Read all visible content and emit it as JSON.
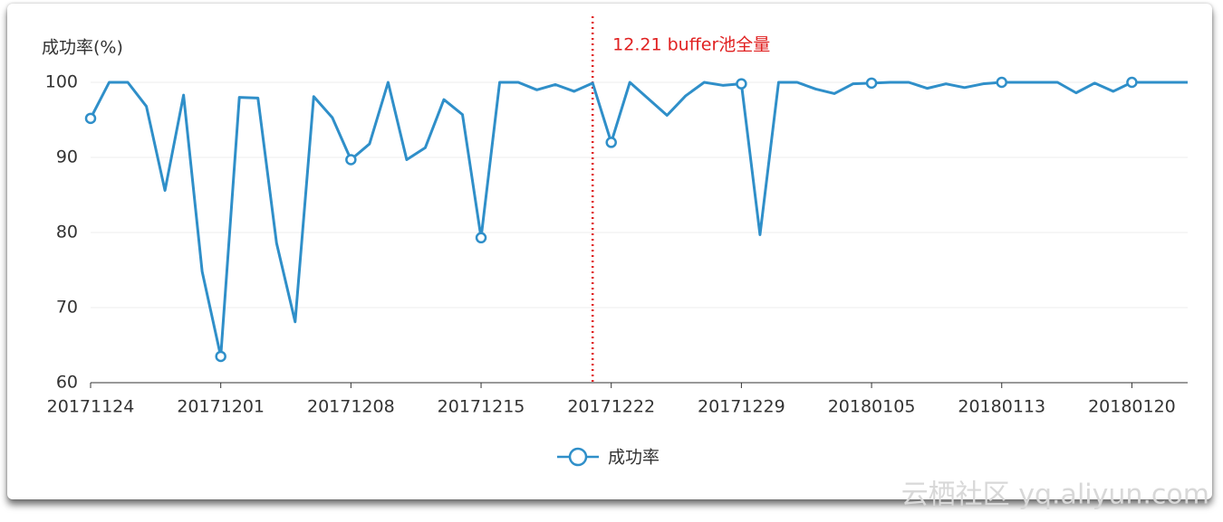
{
  "chart_data": {
    "type": "line",
    "y_label": "成功率(%)",
    "categories": [
      "20171124",
      null,
      null,
      null,
      null,
      null,
      null,
      "20171201",
      null,
      null,
      null,
      null,
      null,
      null,
      "20171208",
      null,
      null,
      null,
      null,
      null,
      null,
      "20171215",
      null,
      null,
      null,
      null,
      null,
      null,
      "20171222",
      null,
      null,
      null,
      null,
      null,
      null,
      "20171229",
      null,
      null,
      null,
      null,
      null,
      null,
      "20180105",
      null,
      null,
      null,
      null,
      null,
      null,
      "20180113",
      null,
      null,
      null,
      null,
      null,
      null,
      "20180120",
      null,
      null,
      null
    ],
    "series": [
      {
        "name": "成功率",
        "color": "#2f8fc9",
        "values": [
          95.2,
          100,
          100,
          96.8,
          85.6,
          98.3,
          74.8,
          63.5,
          98.0,
          97.9,
          78.6,
          68.1,
          98.1,
          95.3,
          89.7,
          91.8,
          100,
          89.7,
          91.3,
          97.7,
          95.7,
          79.3,
          100,
          100,
          99.0,
          99.7,
          98.8,
          99.9,
          92.0,
          100,
          97.8,
          95.6,
          98.2,
          100,
          99.6,
          99.8,
          79.7,
          100,
          100,
          99.1,
          98.5,
          99.8,
          99.9,
          100,
          100,
          99.2,
          99.8,
          99.3,
          99.8,
          100,
          100,
          100,
          100,
          98.6,
          99.9,
          98.8,
          100,
          100,
          100,
          100
        ]
      }
    ],
    "ylim": [
      60,
      100
    ],
    "yticks": [
      60,
      70,
      80,
      90,
      100
    ],
    "grid": true,
    "annotations": [
      {
        "text": "12.21 buffer池全量",
        "category_index": 27,
        "color": "#e02020"
      }
    ],
    "legend": "bottom",
    "watermark": "云栖社区 yq.aliyun.com"
  }
}
